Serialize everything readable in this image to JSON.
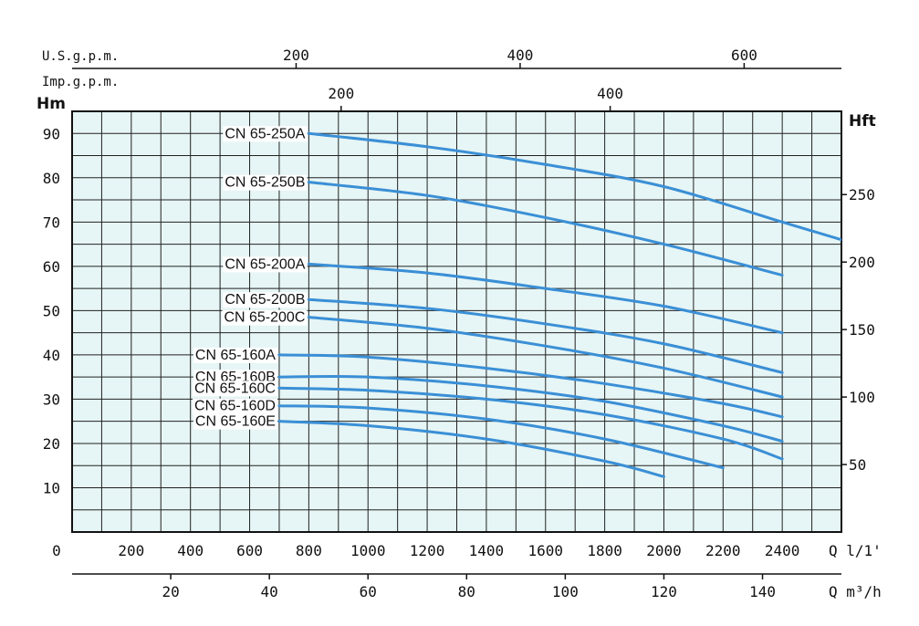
{
  "chart_data": {
    "type": "line",
    "title": "",
    "background_color": "#e6f5f5",
    "curve_color": "#3a8fd6",
    "grid": true,
    "xlabel": "Q l/1'",
    "ylabel": "Hm",
    "ylabel_right": "Hft",
    "xlim": [
      0,
      2600
    ],
    "ylim": [
      0,
      95
    ],
    "x_ticks": [
      "0",
      "200",
      "400",
      "600",
      "800",
      "1000",
      "1200",
      "1400",
      "1600",
      "1800",
      "2000",
      "2200",
      "2400"
    ],
    "y_ticks": [
      "10",
      "20",
      "30",
      "40",
      "50",
      "60",
      "70",
      "80",
      "90"
    ],
    "y_right_ticks": [
      "50",
      "100",
      "150",
      "200",
      "250"
    ],
    "secondary_x_bottom": {
      "label": "Q m³/h",
      "ticks": [
        "20",
        "40",
        "60",
        "80",
        "100",
        "120",
        "140"
      ]
    },
    "secondary_x_top_usgpm": {
      "label": "U.S.g.p.m.",
      "ticks": [
        "200",
        "400",
        "600"
      ]
    },
    "secondary_x_top_impgpm": {
      "label": "Imp.g.p.m.",
      "ticks": [
        "200",
        "400"
      ]
    },
    "series": [
      {
        "name": "CN 65-250A",
        "x": [
          800,
          1200,
          1600,
          2000,
          2400,
          2600
        ],
        "y": [
          90,
          87,
          83,
          78,
          70,
          66
        ]
      },
      {
        "name": "CN 65-250B",
        "x": [
          800,
          1200,
          1600,
          2000,
          2400
        ],
        "y": [
          79,
          76,
          71,
          65,
          58
        ]
      },
      {
        "name": "CN 65-200A",
        "x": [
          800,
          1200,
          1600,
          2000,
          2400
        ],
        "y": [
          60.5,
          58.5,
          55,
          51,
          45
        ]
      },
      {
        "name": "CN 65-200B",
        "x": [
          800,
          1200,
          1600,
          2000,
          2400
        ],
        "y": [
          52.5,
          50.5,
          47,
          42.5,
          36
        ]
      },
      {
        "name": "CN 65-200C",
        "x": [
          800,
          1200,
          1600,
          2000,
          2400
        ],
        "y": [
          48.5,
          46,
          42,
          37,
          30.5
        ]
      },
      {
        "name": "CN 65-160A",
        "x": [
          700,
          1000,
          1400,
          1800,
          2200,
          2400
        ],
        "y": [
          40,
          39.5,
          37,
          33.5,
          29,
          26
        ]
      },
      {
        "name": "CN 65-160B",
        "x": [
          700,
          1000,
          1400,
          1800,
          2200,
          2400
        ],
        "y": [
          35,
          35,
          33,
          29.5,
          24,
          20.5
        ]
      },
      {
        "name": "CN 65-160C",
        "x": [
          700,
          1000,
          1400,
          1800,
          2200,
          2400
        ],
        "y": [
          32.5,
          32,
          30,
          26.5,
          21,
          16.5
        ]
      },
      {
        "name": "CN 65-160D",
        "x": [
          700,
          1000,
          1400,
          1800,
          2200
        ],
        "y": [
          28.5,
          28,
          25.5,
          21,
          14.5
        ]
      },
      {
        "name": "CN 65-160E",
        "x": [
          700,
          1000,
          1400,
          1800,
          2000
        ],
        "y": [
          25,
          24,
          21,
          16,
          12.5
        ]
      }
    ]
  }
}
